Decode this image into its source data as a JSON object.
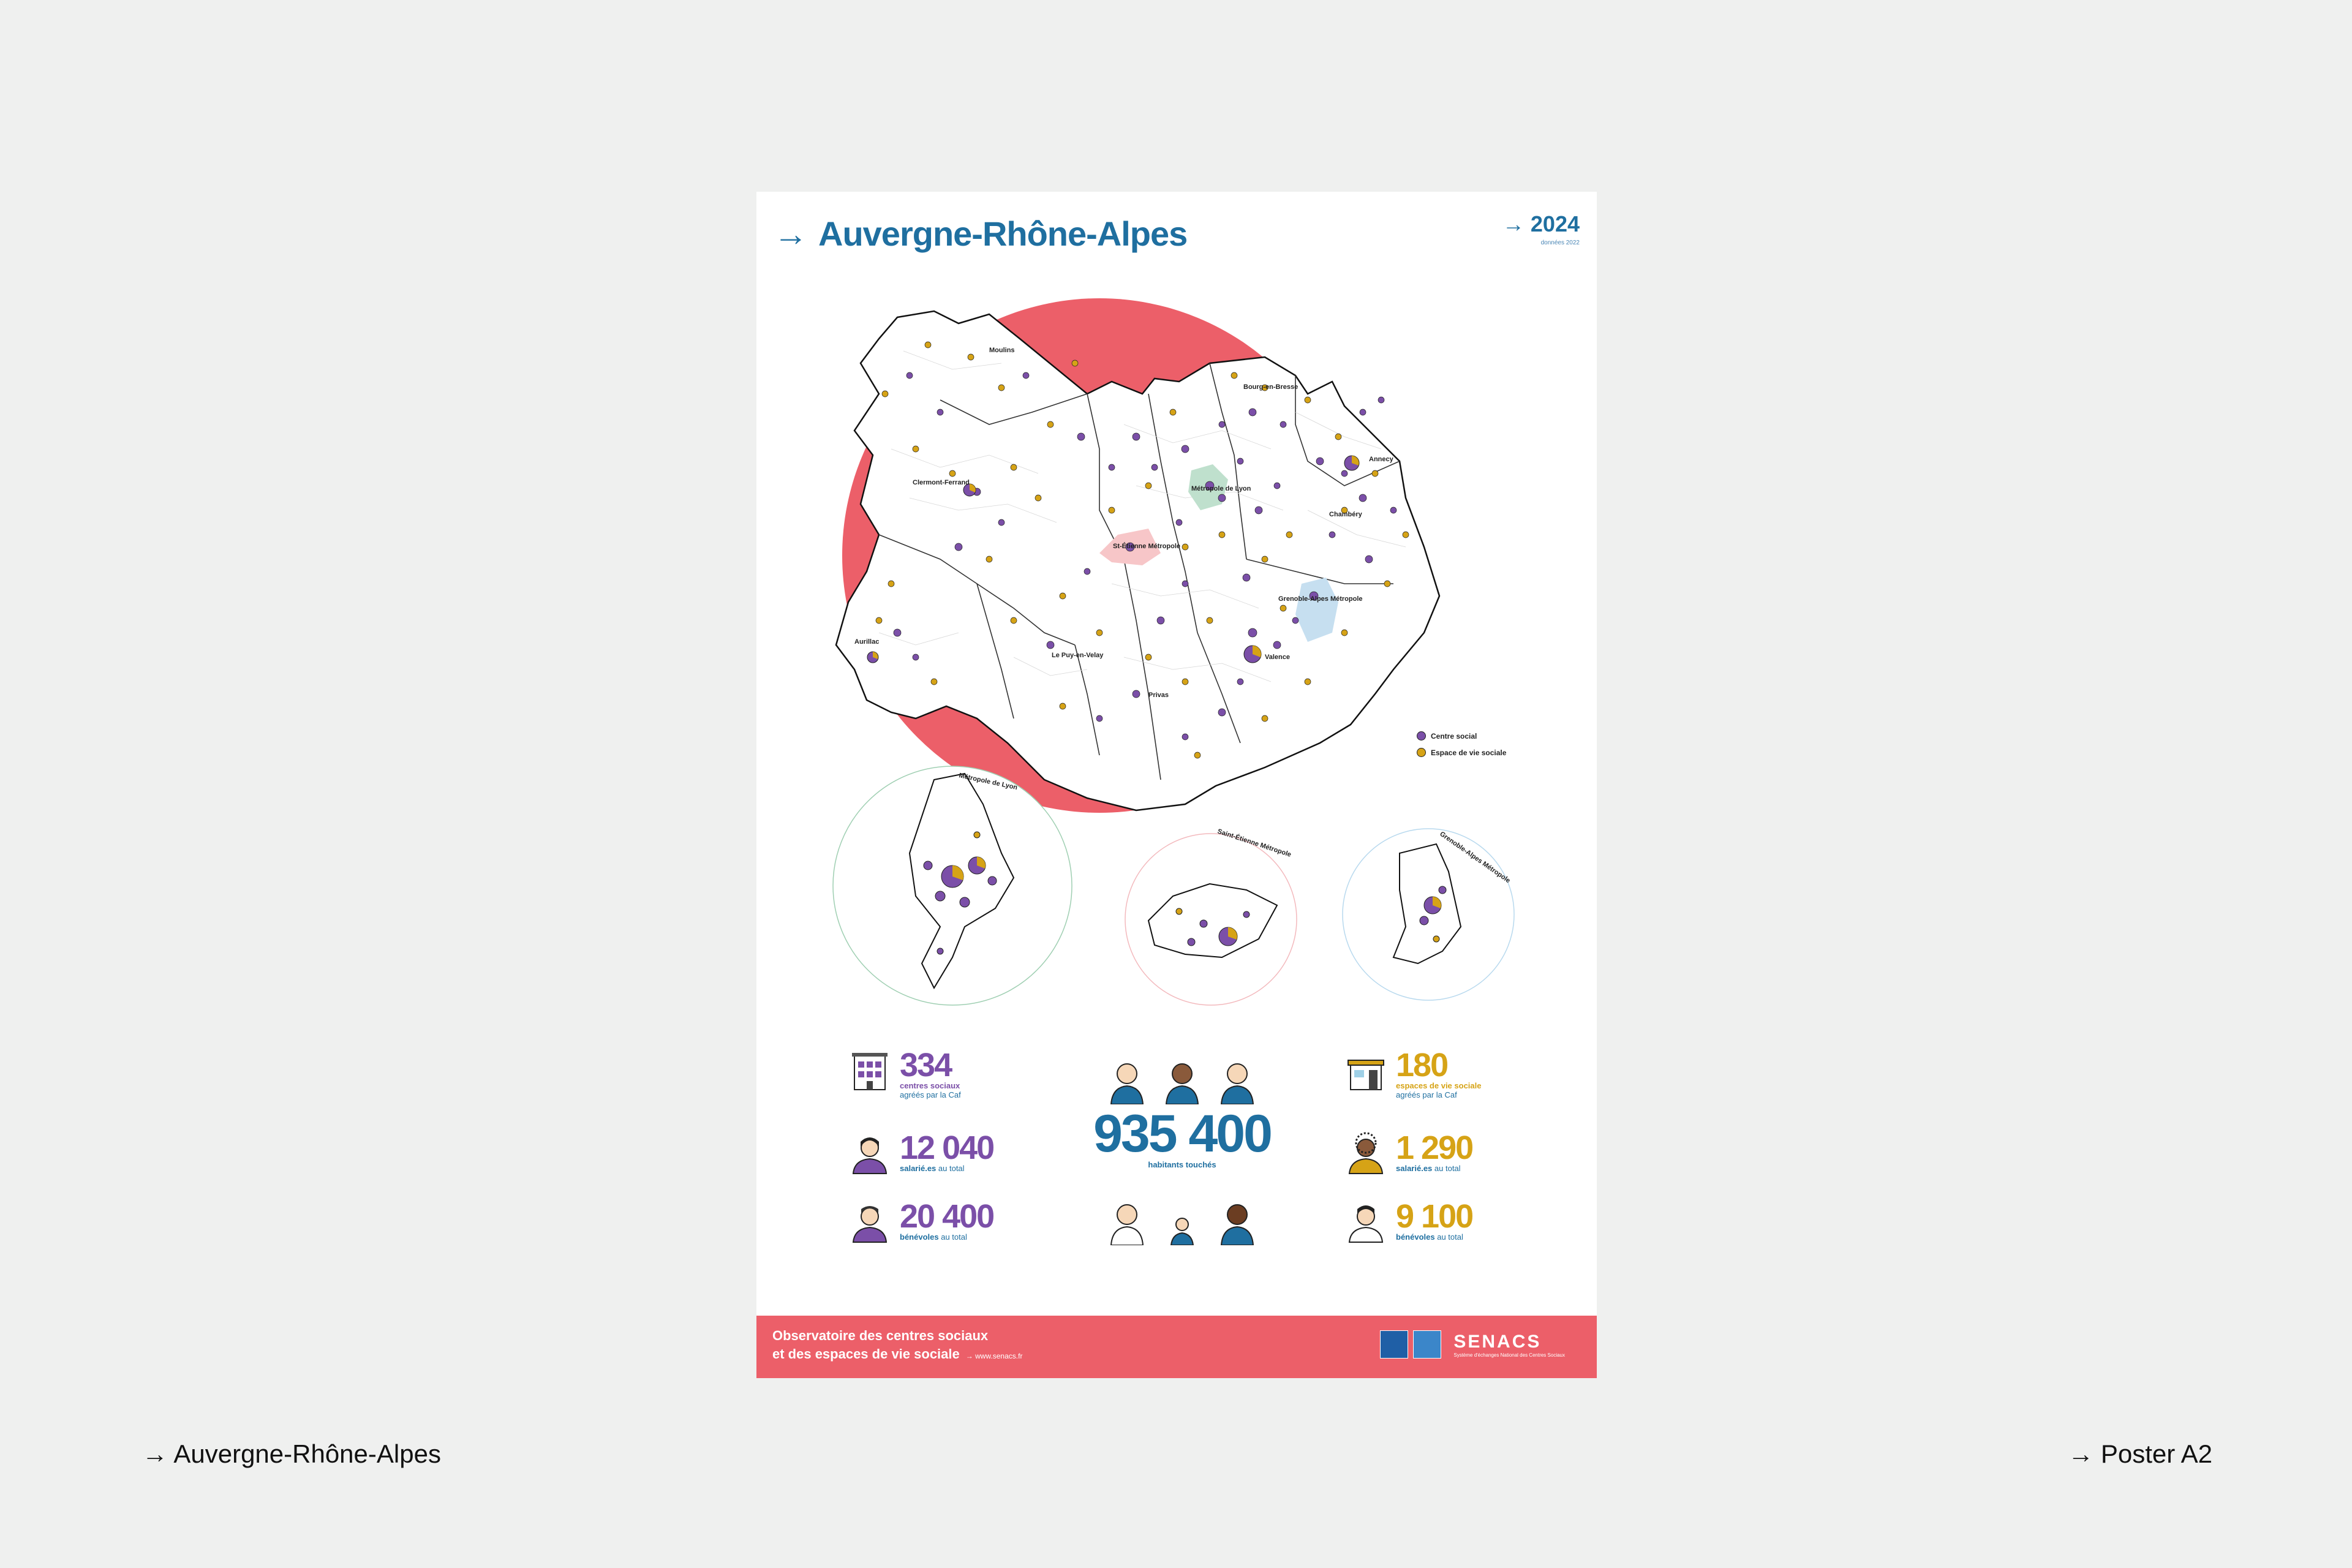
{
  "poster": {
    "arrow": "→",
    "title": "Auvergne-Rhône-Alpes",
    "year": "2024",
    "year_sub": "données 2022"
  },
  "map": {
    "cities": [
      "Moulins",
      "Clermont-Ferrand",
      "Aurillac",
      "Le Puy-en-Velay",
      "Bourg-en-Bresse",
      "Métropole de Lyon",
      "St-Étienne Métropole",
      "Annecy",
      "Chambéry",
      "Grenoble-Alpes Métropole",
      "Valence",
      "Privas"
    ],
    "legend": [
      {
        "label": "Centre social",
        "color": "#7b4fa8"
      },
      {
        "label": "Espace de vie sociale",
        "color": "#d6a316"
      }
    ],
    "insets": [
      "Métropole de Lyon",
      "Saint-Étienne Métropole",
      "Grenoble-Alpes Métropole"
    ],
    "colors": {
      "accent": "#ec5f69",
      "primary": "#1f6fa0",
      "purple": "#7b4fa8",
      "gold": "#d6a316"
    }
  },
  "stats": {
    "centres": {
      "num": "334",
      "label": "centres sociaux",
      "sub": "agréés par la Caf"
    },
    "salaries_cs": {
      "num": "12 040",
      "label": "salarié.es",
      "sub": "au total"
    },
    "benevoles_cs": {
      "num": "20 400",
      "label": "bénévoles",
      "sub": "au total"
    },
    "habitants": {
      "num": "935 400",
      "label": "habitants touchés"
    },
    "evs": {
      "num": "180",
      "label": "espaces de vie sociale",
      "sub": "agréés par la Caf"
    },
    "salaries_evs": {
      "num": "1 290",
      "label": "salarié.es",
      "sub": "au total"
    },
    "benevoles_evs": {
      "num": "9 100",
      "label": "bénévoles",
      "sub": "au total"
    }
  },
  "footer": {
    "line1": "Observatoire des centres sociaux",
    "line2": "et des espaces de vie sociale",
    "url": "→ www.senacs.fr",
    "brand": "SENACS",
    "brand_sub": "Système d'échanges National des Centres Sociaux"
  },
  "captions": {
    "left": "→ Auvergne-Rhône-Alpes",
    "right": "→ Poster A2"
  }
}
